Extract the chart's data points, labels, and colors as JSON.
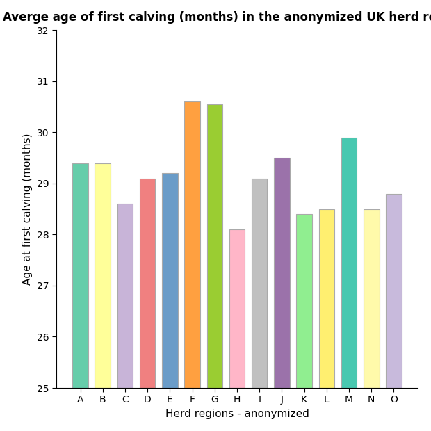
{
  "categories": [
    "A",
    "B",
    "C",
    "D",
    "E",
    "F",
    "G",
    "H",
    "I",
    "J",
    "K",
    "L",
    "M",
    "N",
    "O"
  ],
  "values": [
    29.4,
    29.4,
    28.6,
    29.1,
    29.2,
    30.6,
    30.55,
    28.1,
    29.1,
    29.5,
    28.4,
    28.5,
    29.9,
    28.5,
    28.8
  ],
  "bar_colors": [
    "#66CDAA",
    "#FFFF99",
    "#C8B4D8",
    "#F08080",
    "#6A9CC8",
    "#FFA040",
    "#9ACD32",
    "#FFB6C8",
    "#C0C0C0",
    "#9B72AA",
    "#90EE90",
    "#FFEF70",
    "#48C8B0",
    "#FFFAAA",
    "#C8BADC"
  ],
  "title": "Averge age of first calving (months) in the anonymized UK herd regions",
  "xlabel": "Herd regions - anonymized",
  "ylabel": "Age at first calving (months)",
  "ylim": [
    25,
    32
  ],
  "ybase": 25,
  "yticks": [
    25,
    26,
    27,
    28,
    29,
    30,
    31,
    32
  ],
  "bar_edge_color": "#AAAAAA",
  "background_color": "#FFFFFF",
  "title_fontsize": 12,
  "label_fontsize": 11,
  "tick_fontsize": 10,
  "bar_width": 0.7
}
